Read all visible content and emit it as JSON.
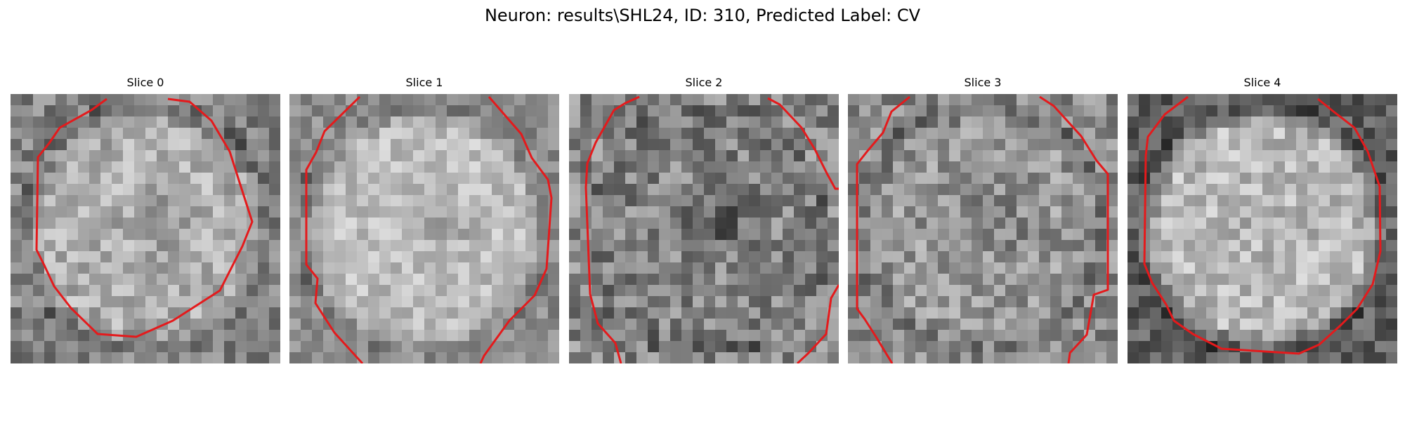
{
  "figure": {
    "title": "Neuron: results\\SHL24, ID: 310, Predicted Label: CV"
  },
  "slices": [
    {
      "title": "Slice 0"
    },
    {
      "title": "Slice 1"
    },
    {
      "title": "Slice 2"
    },
    {
      "title": "Slice 3"
    },
    {
      "title": "Slice 4"
    }
  ],
  "contour_color": "#e41a1c"
}
